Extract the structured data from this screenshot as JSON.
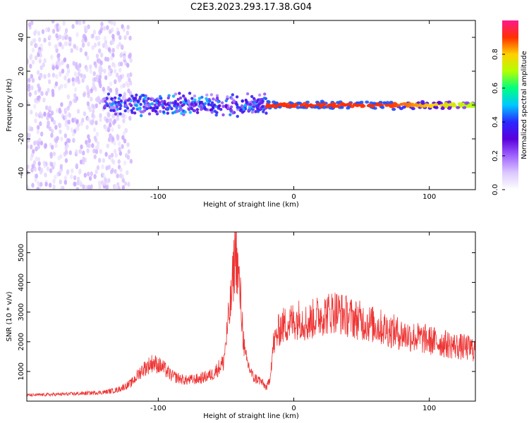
{
  "page": {
    "title": "C2E3.2023.293.17.38.G04"
  },
  "colors": {
    "snr_line": "#ee3333",
    "colormap": [
      "#ffffff",
      "#dcc8ff",
      "#a064ff",
      "#5a00dc",
      "#2a28ff",
      "#00c8ff",
      "#00ff80",
      "#b4ff00",
      "#ffd000",
      "#ff3000",
      "#ff1a8c"
    ]
  },
  "chart_data": [
    {
      "type": "heatmap",
      "xlabel": "Height of straight line (km)",
      "ylabel": "Frequency (Hz)",
      "xlim": [
        -197,
        134
      ],
      "ylim": [
        -50,
        50
      ],
      "xticks": [
        -100,
        0,
        100
      ],
      "yticks": [
        -40,
        -20,
        0,
        20,
        40
      ],
      "grid": false,
      "colorbar": {
        "label": "Normalized spectral amplitude",
        "range": [
          0,
          1
        ],
        "ticks": [
          0.0,
          0.2,
          0.4,
          0.6,
          0.8
        ]
      },
      "features": [
        {
          "x_range": [
            -197,
            -120
          ],
          "freq_range": [
            -50,
            50
          ],
          "amplitude": 0.15,
          "description_of_pattern": "broadband scatter"
        },
        {
          "x_range": [
            -140,
            -20
          ],
          "freq_range": [
            -8,
            8
          ],
          "amplitude": 0.5,
          "description_of_pattern": "band around 0 Hz"
        },
        {
          "x_range": [
            -20,
            134
          ],
          "freq_range": [
            -3,
            3
          ],
          "amplitude": 0.95,
          "description_of_pattern": "narrow line at 0 Hz"
        }
      ]
    },
    {
      "type": "line",
      "xlabel": "Height of straight line (km)",
      "ylabel": "SNR (10 * v/v)",
      "xlim": [
        -197,
        134
      ],
      "ylim": [
        0,
        5700
      ],
      "xticks": [
        -100,
        0,
        100
      ],
      "yticks": [
        1000,
        2000,
        3000,
        4000,
        5000
      ],
      "grid": false,
      "series": [
        {
          "x": [
            -197,
            -180,
            -160,
            -140,
            -130,
            -120,
            -112,
            -104,
            -97,
            -90,
            -80,
            -70,
            -60,
            -52,
            -46,
            -43,
            -40,
            -36,
            -30,
            -25,
            -20,
            -18,
            -15,
            -10,
            -5,
            0,
            5,
            10,
            15,
            20,
            25,
            30,
            35,
            40,
            50,
            60,
            70,
            80,
            90,
            100,
            110,
            120,
            134
          ],
          "y": [
            200,
            220,
            250,
            300,
            380,
            600,
            1050,
            1300,
            1150,
            850,
            700,
            750,
            900,
            1300,
            3500,
            5200,
            3800,
            1500,
            800,
            700,
            450,
            700,
            1900,
            2500,
            2600,
            2700,
            2800,
            2600,
            2800,
            2900,
            2950,
            3050,
            2950,
            2850,
            2700,
            2550,
            2400,
            2250,
            2150,
            2050,
            1950,
            1850,
            1750
          ]
        }
      ]
    }
  ]
}
